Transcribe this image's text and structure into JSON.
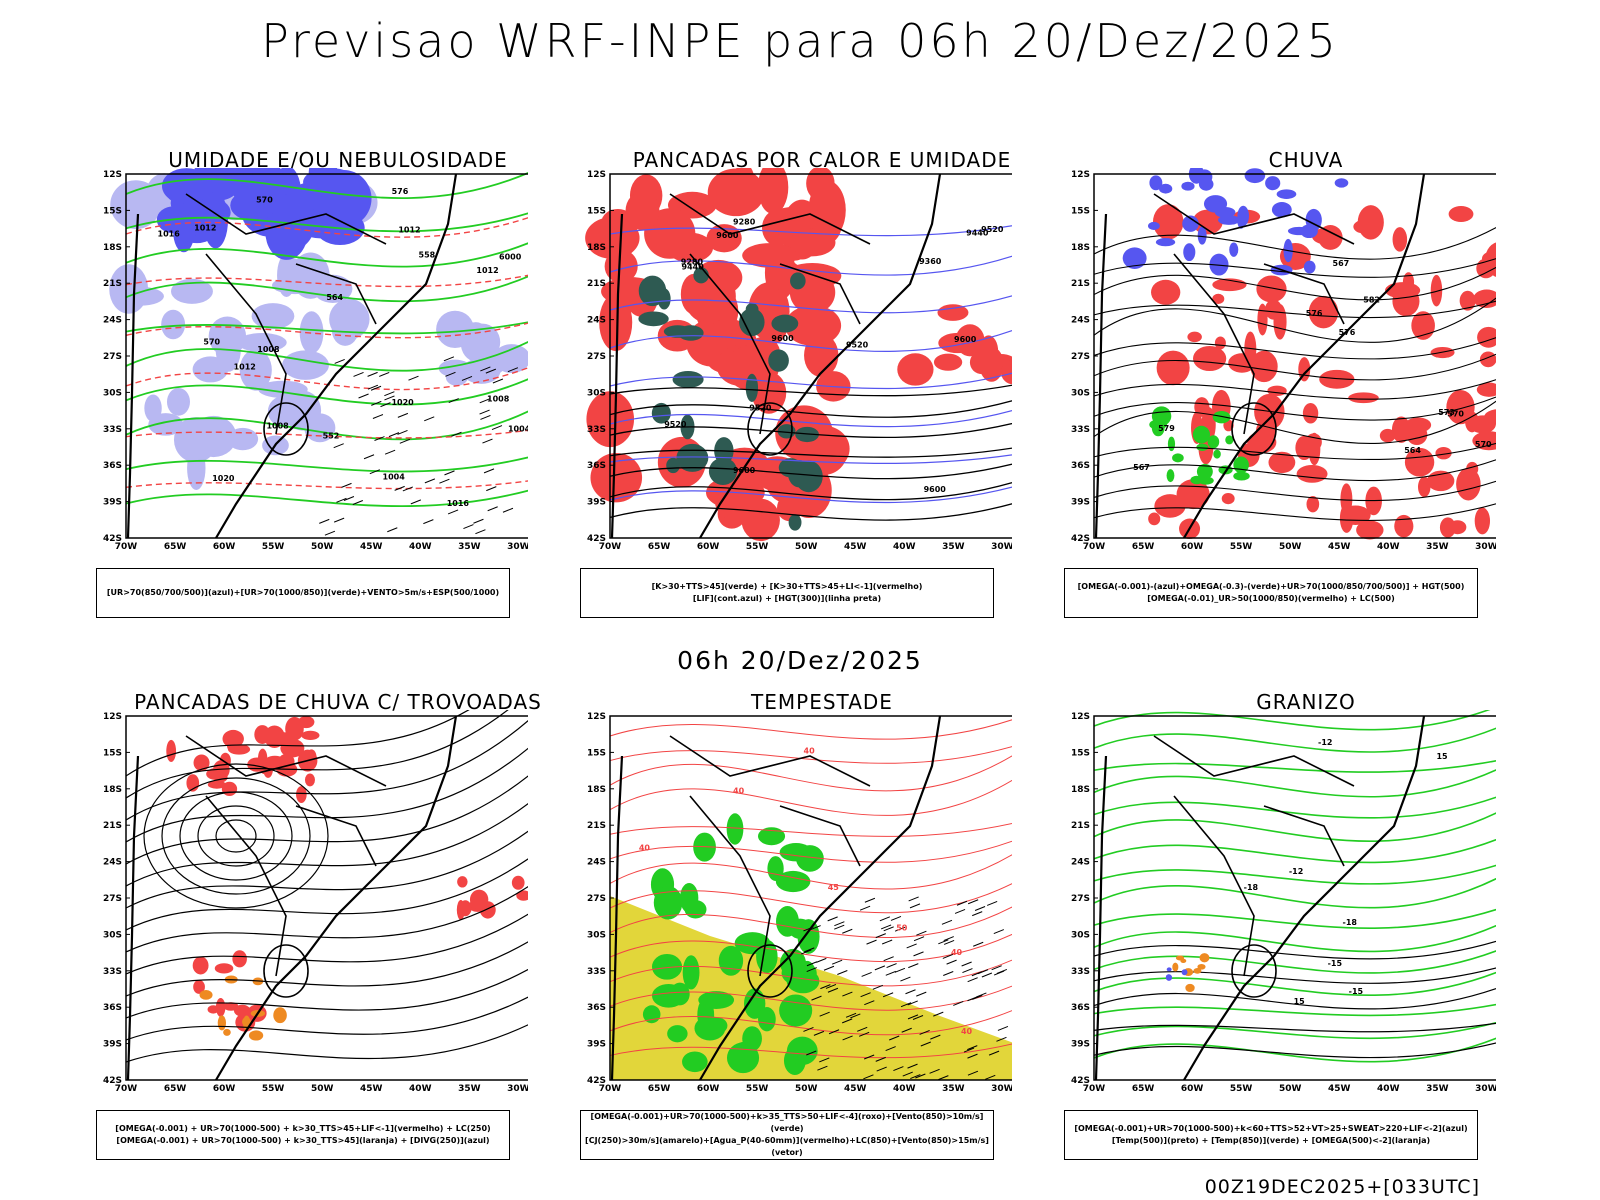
{
  "main_title": "Previsao WRF-INPE  para 06h 20/Dez/2025",
  "mid_title": "06h 20/Dez/2025",
  "footer": "00Z19DEC2025+[033UTC]",
  "lat_labels": [
    "12S",
    "15S",
    "18S",
    "21S",
    "24S",
    "27S",
    "30S",
    "33S",
    "36S",
    "39S",
    "42S"
  ],
  "lon_labels": [
    "70W",
    "65W",
    "60W",
    "55W",
    "50W",
    "45W",
    "40W",
    "35W",
    "30W"
  ],
  "colors": {
    "red": "#f24444",
    "blue": "#5656f0",
    "lightblue": "#b8b8f2",
    "green": "#22cc22",
    "darkteal": "#2e5a52",
    "yellow": "#e2d63a",
    "orange": "#ee8a22"
  },
  "panels": [
    {
      "title": "UMIDADE E/OU NEBULOSIDADE",
      "legend": [
        "[UR>70(850/700/500)](azul)+[UR>70(1000/850)](verde)+VENTO>5m/s+ESP(500/1000)"
      ],
      "contour_labels": [
        "1012",
        "1008",
        "1012",
        "1016",
        "1016",
        "1004",
        "1012",
        "1020",
        "1008",
        "1012",
        "1020",
        "1008",
        "1004",
        "576",
        "570",
        "570",
        "564",
        "558",
        "552",
        "6000"
      ]
    },
    {
      "title": "PANCADAS POR CALOR E UMIDADE",
      "legend": [
        "[K>30+TTS>45](verde) + [K>30+TTS>45+LI<-1](vermelho)",
        "[LIF](cont.azul) + [HGT(300)](linha preta)"
      ],
      "contour_labels": [
        "9600",
        "9600",
        "9600",
        "9600",
        "9520",
        "9440",
        "9520",
        "9600",
        "9520",
        "9440",
        "9360",
        "9280",
        "9280",
        "9520"
      ]
    },
    {
      "title": "CHUVA",
      "legend": [
        "[OMEGA(-0.001)-(azul)+OMEGA(-0.3)-(verde)+UR>70(1000/850/700/500)] + HGT(500)",
        "[OMEGA(-0.01)_UR>50(1000/850)(vermelho) + LC(500)"
      ],
      "contour_labels": [
        "579",
        "576",
        "573",
        "570",
        "567",
        "564",
        "576",
        "582",
        "570",
        "567"
      ]
    },
    {
      "title": "PANCADAS DE CHUVA C/ TROVOADAS",
      "legend": [
        "[OMEGA(-0.001) + UR>70(1000-500) + k>30_TTS>45+LIF<-1](vermelho) + LC(250)",
        "[OMEGA(-0.001) + UR>70(1000-500) + k>30_TTS>45](laranja) + [DIVG(250)](azul)"
      ],
      "contour_labels": []
    },
    {
      "title": "TEMPESTADE",
      "legend": [
        "[OMEGA(-0.001)+UR>70(1000-500)+k>35_TTS>50+LIF<-4](roxo)+[Vento(850)>10m/s](verde)",
        "[CJ(250)>30m/s](amarelo)+[Agua_P(40-60mm)](vermelho)+LC(850)+[Vento(850)>15m/s](vetor)"
      ],
      "contour_labels": [
        "40",
        "40",
        "40",
        "40",
        "50",
        "45",
        "40"
      ]
    },
    {
      "title": "GRANIZO",
      "legend": [
        "[OMEGA(-0.001)+UR>70(1000-500)+k<60+TTS>52+VT>25+SWEAT>220+LIF<-2](azul)",
        "[Temp(500)](preto) + [Temp(850)](verde) + [OMEGA(500)<-2](laranja)"
      ],
      "contour_labels": [
        "-12",
        "-12",
        "-15",
        "-15",
        "-18",
        "-18",
        "15",
        "15"
      ]
    }
  ]
}
